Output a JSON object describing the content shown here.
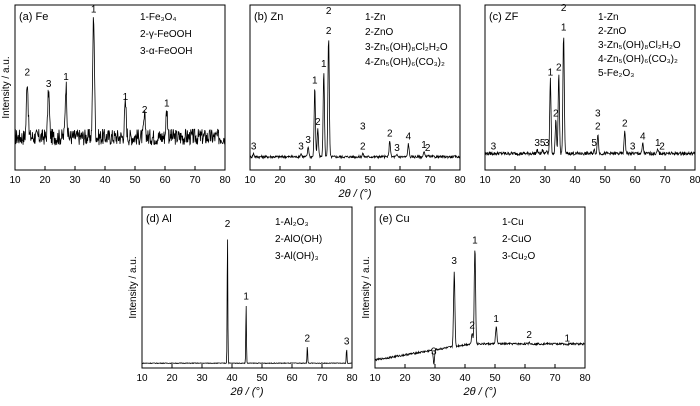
{
  "chart_data": [
    {
      "type": "line",
      "panel_label": "(a) Fe",
      "xlabel": "2θ / (°)",
      "ylabel": "Intensity / a.u.",
      "xlim": [
        10,
        80
      ],
      "xticks": [
        10,
        20,
        30,
        40,
        50,
        60,
        70,
        80
      ],
      "show_xlabel": false,
      "legend": [
        "1-Fe₃O₄",
        "2-γ-FeOOH",
        "3-α-FeOOH"
      ],
      "peaks": [
        {
          "x": 14.1,
          "h": 0.55,
          "label": "2"
        },
        {
          "x": 21.2,
          "h": 0.48,
          "label": "3"
        },
        {
          "x": 27.0,
          "h": 0.52,
          "label": "1"
        },
        {
          "x": 36.2,
          "h": 0.93,
          "label": "1"
        },
        {
          "x": 46.8,
          "h": 0.4,
          "label": "1"
        },
        {
          "x": 53.2,
          "h": 0.32,
          "label": "2"
        },
        {
          "x": 60.6,
          "h": 0.36,
          "label": "1"
        }
      ],
      "baseline": 0.2,
      "noise": 0.1,
      "width": 0.4
    },
    {
      "type": "line",
      "panel_label": "(b) Zn",
      "xlabel": "2θ / (°)",
      "ylabel": "",
      "xlim": [
        10,
        80
      ],
      "xticks": [
        10,
        20,
        30,
        40,
        50,
        60,
        70,
        80
      ],
      "show_xlabel": true,
      "legend": [
        "1-Zn",
        "2-ZnO",
        "3-Zn₅(OH)₈Cl₂H₂O",
        "4-Zn₅(OH)₆(CO₃)₂"
      ],
      "peaks": [
        {
          "x": 11.2,
          "h": 0.1,
          "label": "3"
        },
        {
          "x": 27.0,
          "h": 0.1,
          "label": "3"
        },
        {
          "x": 29.4,
          "h": 0.14,
          "label": "3"
        },
        {
          "x": 31.6,
          "h": 0.5,
          "label": "1"
        },
        {
          "x": 32.6,
          "h": 0.25,
          "label": "2"
        },
        {
          "x": 34.6,
          "h": 0.6,
          "label": "1"
        },
        {
          "x": 36.2,
          "h": 0.8,
          "label": "2"
        },
        {
          "x": 47.6,
          "h": 0.1,
          "label": "2"
        },
        {
          "x": 56.6,
          "h": 0.18,
          "label": "2"
        },
        {
          "x": 59.0,
          "h": 0.09,
          "label": "3"
        },
        {
          "x": 62.8,
          "h": 0.16,
          "label": "4"
        },
        {
          "x": 68.0,
          "h": 0.11,
          "label": "1"
        },
        {
          "x": 69.2,
          "h": 0.09,
          "label": "2"
        }
      ],
      "extra_labels": [
        {
          "x": 47.6,
          "h": 0.22,
          "label": "3"
        },
        {
          "x": 36.2,
          "h": 0.92,
          "label": "2"
        }
      ],
      "baseline": 0.08,
      "noise": 0.015,
      "width": 0.3
    },
    {
      "type": "line",
      "panel_label": "(c) ZF",
      "xlabel": "2θ / (°)",
      "ylabel": "",
      "xlim": [
        10,
        80
      ],
      "xticks": [
        10,
        20,
        30,
        40,
        50,
        60,
        70,
        80
      ],
      "show_xlabel": false,
      "legend": [
        "1-Zn",
        "2-ZnO",
        "3-Zn₅(OH)₈Cl₂H₂O",
        "4-Zn₅(OH)₆(CO₃)₂",
        "5-Fe₂O₃"
      ],
      "peaks": [
        {
          "x": 12.8,
          "h": 0.1,
          "label": "3"
        },
        {
          "x": 27.4,
          "h": 0.12,
          "label": "3"
        },
        {
          "x": 29.2,
          "h": 0.12,
          "label": "5"
        },
        {
          "x": 30.6,
          "h": 0.12,
          "label": "3"
        },
        {
          "x": 31.8,
          "h": 0.55,
          "label": "1"
        },
        {
          "x": 33.6,
          "h": 0.3,
          "label": "2"
        },
        {
          "x": 34.6,
          "h": 0.58,
          "label": "2"
        },
        {
          "x": 36.2,
          "h": 0.82,
          "label": "1"
        },
        {
          "x": 46.4,
          "h": 0.12,
          "label": "5"
        },
        {
          "x": 47.6,
          "h": 0.22,
          "label": "2"
        },
        {
          "x": 56.6,
          "h": 0.24,
          "label": "2"
        },
        {
          "x": 59.2,
          "h": 0.1,
          "label": "3"
        },
        {
          "x": 62.6,
          "h": 0.16,
          "label": "4"
        },
        {
          "x": 67.6,
          "h": 0.12,
          "label": "1"
        },
        {
          "x": 69.0,
          "h": 0.1,
          "label": "2"
        }
      ],
      "extra_labels": [
        {
          "x": 47.6,
          "h": 0.3,
          "label": "3"
        },
        {
          "x": 36.2,
          "h": 0.94,
          "label": "2"
        }
      ],
      "baseline": 0.1,
      "noise": 0.02,
      "width": 0.3
    },
    {
      "type": "line",
      "panel_label": "(d) Al",
      "xlabel": "2θ / (°)",
      "ylabel": "Intensity / a.u.",
      "xlim": [
        10,
        80
      ],
      "xticks": [
        10,
        20,
        30,
        40,
        50,
        60,
        70,
        80
      ],
      "show_xlabel": true,
      "legend": [
        "1-Al₂O₃",
        "2-AlO(OH)",
        "3-Al(OH)₃"
      ],
      "peaks": [
        {
          "x": 38.5,
          "h": 0.85,
          "label": "2"
        },
        {
          "x": 44.7,
          "h": 0.4,
          "label": "1"
        },
        {
          "x": 65.1,
          "h": 0.14,
          "label": "2"
        },
        {
          "x": 78.2,
          "h": 0.12,
          "label": "3"
        }
      ],
      "baseline": 0.03,
      "noise": 0.004,
      "width": 0.15
    },
    {
      "type": "line",
      "panel_label": "(e) Cu",
      "xlabel": "2θ / (°)",
      "ylabel": "Intensity / a.u.",
      "xlim": [
        10,
        80
      ],
      "xticks": [
        10,
        20,
        30,
        40,
        50,
        60,
        70,
        80
      ],
      "show_xlabel": true,
      "legend": [
        "1-Cu",
        "2-CuO",
        "3-Cu₂O"
      ],
      "peaks": [
        {
          "x": 29.6,
          "h": 0.06,
          "label": "3"
        },
        {
          "x": 36.4,
          "h": 0.62,
          "label": "3"
        },
        {
          "x": 42.4,
          "h": 0.22,
          "label": "2"
        },
        {
          "x": 43.3,
          "h": 0.75,
          "label": "1"
        },
        {
          "x": 50.4,
          "h": 0.26,
          "label": "1"
        },
        {
          "x": 61.4,
          "h": 0.16,
          "label": "2"
        },
        {
          "x": 74.1,
          "h": 0.14,
          "label": "1"
        }
      ],
      "baseline_start": 0.05,
      "baseline": 0.15,
      "noise": 0.012,
      "width": 0.3
    }
  ]
}
